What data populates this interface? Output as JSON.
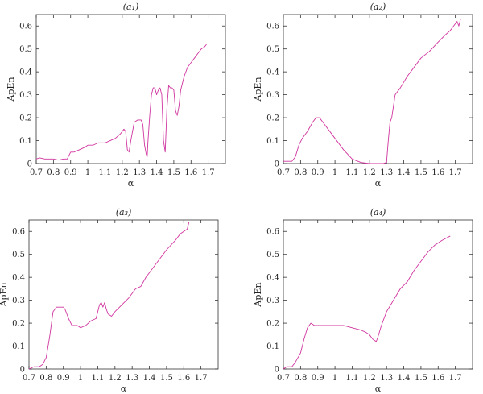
{
  "chart_data": [
    {
      "type": "line",
      "title": "(a₁)",
      "xlabel": "α",
      "ylabel": "ApEn",
      "xlim": [
        0.7,
        1.8
      ],
      "ylim": [
        0,
        0.65
      ],
      "xticks": [
        "0.7",
        "0.8",
        "0.9",
        "1",
        "1.1",
        "1.2",
        "1.3",
        "1.4",
        "1.5",
        "1.6",
        "1.7"
      ],
      "yticks": [
        "0",
        "0.1",
        "0.2",
        "0.3",
        "0.4",
        "0.5",
        "0.6"
      ],
      "grid": false,
      "line_color": "#d0359f",
      "series": [
        {
          "x": [
            0.7,
            0.72,
            0.75,
            0.78,
            0.8,
            0.83,
            0.86,
            0.88,
            0.9,
            0.92,
            0.95,
            0.98,
            1.0,
            1.03,
            1.06,
            1.1,
            1.13,
            1.16,
            1.19,
            1.21,
            1.22,
            1.23,
            1.24,
            1.25,
            1.27,
            1.29,
            1.31,
            1.32,
            1.33,
            1.34,
            1.345,
            1.35,
            1.36,
            1.37,
            1.38,
            1.39,
            1.4,
            1.41,
            1.42,
            1.43,
            1.44,
            1.45,
            1.46,
            1.47,
            1.48,
            1.49,
            1.5,
            1.51,
            1.52,
            1.53,
            1.54,
            1.56,
            1.58,
            1.6,
            1.62,
            1.64,
            1.66,
            1.68,
            1.69
          ],
          "y": [
            0.02,
            0.025,
            0.02,
            0.02,
            0.02,
            0.015,
            0.02,
            0.02,
            0.05,
            0.05,
            0.06,
            0.07,
            0.08,
            0.08,
            0.09,
            0.09,
            0.1,
            0.11,
            0.13,
            0.15,
            0.14,
            0.06,
            0.05,
            0.1,
            0.18,
            0.19,
            0.19,
            0.17,
            0.08,
            0.04,
            0.03,
            0.1,
            0.21,
            0.3,
            0.33,
            0.33,
            0.3,
            0.32,
            0.33,
            0.3,
            0.1,
            0.05,
            0.24,
            0.34,
            0.33,
            0.33,
            0.32,
            0.23,
            0.21,
            0.25,
            0.32,
            0.38,
            0.42,
            0.44,
            0.46,
            0.48,
            0.5,
            0.51,
            0.52
          ]
        }
      ]
    },
    {
      "type": "line",
      "title": "(a₂)",
      "xlabel": "α",
      "ylabel": "ApEn",
      "xlim": [
        0.7,
        1.8
      ],
      "ylim": [
        0,
        0.65
      ],
      "xticks": [
        "0.7",
        "0.8",
        "0.9",
        "1",
        "1.1",
        "1.2",
        "1.3",
        "1.4",
        "1.5",
        "1.6",
        "1.7"
      ],
      "yticks": [
        "0",
        "0.1",
        "0.2",
        "0.3",
        "0.4",
        "0.5",
        "0.6"
      ],
      "grid": false,
      "line_color": "#d0359f",
      "series": [
        {
          "x": [
            0.7,
            0.72,
            0.75,
            0.77,
            0.79,
            0.81,
            0.84,
            0.87,
            0.89,
            0.91,
            0.93,
            0.96,
            1.0,
            1.05,
            1.1,
            1.15,
            1.2,
            1.25,
            1.28,
            1.3,
            1.31,
            1.32,
            1.33,
            1.35,
            1.38,
            1.42,
            1.45,
            1.5,
            1.55,
            1.6,
            1.64,
            1.67,
            1.69,
            1.7,
            1.71,
            1.72,
            1.73
          ],
          "y": [
            0.01,
            0.01,
            0.01,
            0.03,
            0.08,
            0.11,
            0.14,
            0.18,
            0.2,
            0.2,
            0.18,
            0.15,
            0.11,
            0.06,
            0.02,
            0.005,
            0.0,
            0.0,
            0.0,
            0.005,
            0.1,
            0.18,
            0.2,
            0.3,
            0.33,
            0.38,
            0.41,
            0.46,
            0.49,
            0.53,
            0.56,
            0.58,
            0.6,
            0.61,
            0.62,
            0.6,
            0.63
          ]
        }
      ]
    },
    {
      "type": "line",
      "title": "(a₃)",
      "xlabel": "α",
      "ylabel": "ApEn",
      "xlim": [
        0.7,
        1.8
      ],
      "ylim": [
        0,
        0.65
      ],
      "xticks": [
        "0.7",
        "0.8",
        "0.9",
        "1",
        "1.1",
        "1.2",
        "1.3",
        "1.4",
        "1.5",
        "1.6",
        "1.7"
      ],
      "yticks": [
        "0",
        "0.1",
        "0.2",
        "0.3",
        "0.4",
        "0.5",
        "0.6"
      ],
      "grid": false,
      "line_color": "#d0359f",
      "series": [
        {
          "x": [
            0.7,
            0.73,
            0.76,
            0.78,
            0.8,
            0.82,
            0.84,
            0.86,
            0.88,
            0.9,
            0.91,
            0.93,
            0.95,
            0.98,
            1.0,
            1.03,
            1.06,
            1.09,
            1.11,
            1.12,
            1.13,
            1.14,
            1.15,
            1.16,
            1.18,
            1.2,
            1.24,
            1.28,
            1.32,
            1.35,
            1.38,
            1.42,
            1.46,
            1.5,
            1.55,
            1.58,
            1.6,
            1.62,
            1.63
          ],
          "y": [
            0.0,
            0.01,
            0.01,
            0.02,
            0.05,
            0.14,
            0.25,
            0.27,
            0.27,
            0.27,
            0.26,
            0.22,
            0.19,
            0.19,
            0.18,
            0.19,
            0.21,
            0.22,
            0.28,
            0.29,
            0.27,
            0.29,
            0.26,
            0.24,
            0.23,
            0.25,
            0.28,
            0.31,
            0.35,
            0.36,
            0.4,
            0.44,
            0.48,
            0.52,
            0.56,
            0.59,
            0.6,
            0.61,
            0.64
          ]
        }
      ]
    },
    {
      "type": "line",
      "title": "(a₄)",
      "xlabel": "α",
      "ylabel": "ApEn",
      "xlim": [
        0.7,
        1.8
      ],
      "ylim": [
        0,
        0.65
      ],
      "xticks": [
        "0.7",
        "0.8",
        "0.9",
        "1",
        "1.1",
        "1.2",
        "1.3",
        "1.4",
        "1.5",
        "1.6",
        "1.7"
      ],
      "yticks": [
        "0",
        "0.1",
        "0.2",
        "0.3",
        "0.4",
        "0.5",
        "0.6"
      ],
      "grid": false,
      "line_color": "#d0359f",
      "series": [
        {
          "x": [
            0.7,
            0.72,
            0.75,
            0.77,
            0.8,
            0.82,
            0.84,
            0.86,
            0.88,
            0.9,
            0.95,
            1.0,
            1.05,
            1.1,
            1.15,
            1.18,
            1.2,
            1.22,
            1.24,
            1.25,
            1.27,
            1.3,
            1.34,
            1.38,
            1.42,
            1.46,
            1.5,
            1.54,
            1.58,
            1.6,
            1.62,
            1.67
          ],
          "y": [
            0.0,
            0.01,
            0.01,
            0.03,
            0.07,
            0.13,
            0.18,
            0.2,
            0.19,
            0.19,
            0.19,
            0.19,
            0.19,
            0.18,
            0.17,
            0.16,
            0.15,
            0.13,
            0.12,
            0.14,
            0.19,
            0.25,
            0.3,
            0.35,
            0.38,
            0.43,
            0.47,
            0.51,
            0.54,
            0.55,
            0.56,
            0.58
          ]
        }
      ]
    }
  ]
}
